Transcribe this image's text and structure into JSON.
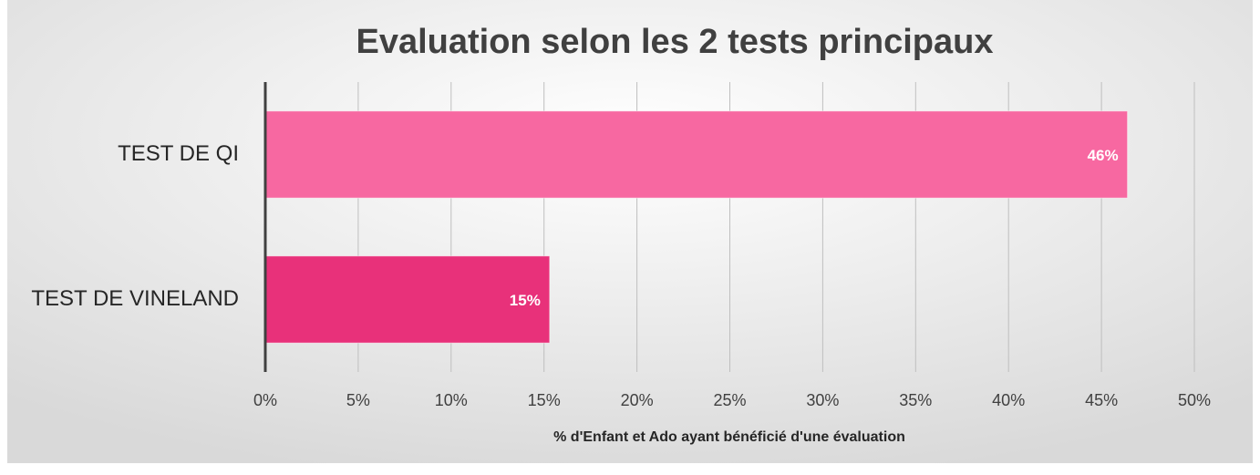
{
  "chart_data": {
    "type": "barh",
    "title": "Evaluation selon les 2 tests principaux",
    "categories": [
      "TEST DE QI",
      "TEST DE VINELAND"
    ],
    "values": [
      46.4,
      15.3
    ],
    "value_labels": [
      "46%",
      "15%"
    ],
    "colors": [
      "#f768a1",
      "#e8317a"
    ],
    "xlabel": "% d'Enfant et Ado ayant bénéficié d'une évaluation",
    "xlim": [
      0,
      50
    ],
    "xticks": [
      {
        "value": 0,
        "label": "0%"
      },
      {
        "value": 5,
        "label": "5%"
      },
      {
        "value": 10,
        "label": "10%"
      },
      {
        "value": 15,
        "label": "15%"
      },
      {
        "value": 20,
        "label": "20%"
      },
      {
        "value": 25,
        "label": "25%"
      },
      {
        "value": 30,
        "label": "30%"
      },
      {
        "value": 35,
        "label": "35%"
      },
      {
        "value": 40,
        "label": "40%"
      },
      {
        "value": 45,
        "label": "45%"
      },
      {
        "value": 50,
        "label": "50%"
      }
    ],
    "grid": true
  }
}
